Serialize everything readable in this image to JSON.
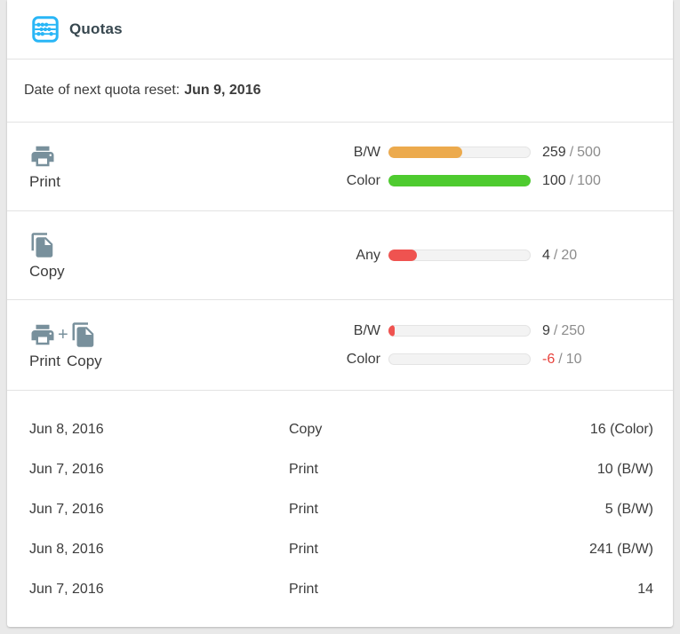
{
  "colors": {
    "accent_cyan": "#29b6f6",
    "icon_gray": "#78909c",
    "orange_bar": "#ecaa4d",
    "green_bar": "#4ecb2f",
    "red_bar": "#ef5350",
    "value_dark": "#3c3c3c",
    "value_negative": "#e8423c"
  },
  "header": {
    "title": "Quotas",
    "icon": "abacus-icon"
  },
  "reset": {
    "label": "Date of next quota reset:",
    "date": "Jun 9, 2016"
  },
  "quotas": [
    {
      "name": "Print",
      "device_labels": [
        "Print"
      ],
      "rows": [
        {
          "label": "B/W",
          "used": "259",
          "sep": "/",
          "limit": "500",
          "percent": 51.8,
          "color": "#ecaa4d",
          "used_color": "#3c3c3c"
        },
        {
          "label": "Color",
          "used": "100",
          "sep": "/",
          "limit": "100",
          "percent": 100,
          "color": "#4ecb2f",
          "used_color": "#3c3c3c"
        }
      ]
    },
    {
      "name": "Copy",
      "device_labels": [
        "Copy"
      ],
      "rows": [
        {
          "label": "Any",
          "used": "4",
          "sep": "/",
          "limit": "20",
          "percent": 20,
          "color": "#ef5350",
          "used_color": "#3c3c3c"
        }
      ]
    },
    {
      "name": "Print + Copy",
      "plus": "+",
      "device_labels": [
        "Print",
        "Copy"
      ],
      "rows": [
        {
          "label": "B/W",
          "used": "9",
          "sep": "/",
          "limit": "250",
          "percent": 3.6,
          "color": "#ef5350",
          "used_color": "#3c3c3c"
        },
        {
          "label": "Color",
          "used": "-6",
          "sep": "/",
          "limit": "10",
          "percent": 0,
          "color": "#ef5350",
          "used_color": "#e8423c"
        }
      ]
    }
  ],
  "history": {
    "rows": [
      {
        "date": "Jun 8, 2016",
        "type": "Copy",
        "amount": "16 (Color)"
      },
      {
        "date": "Jun 7, 2016",
        "type": "Print",
        "amount": "10 (B/W)"
      },
      {
        "date": "Jun 7, 2016",
        "type": "Print",
        "amount": "5 (B/W)"
      },
      {
        "date": "Jun 8, 2016",
        "type": "Print",
        "amount": "241 (B/W)"
      },
      {
        "date": "Jun 7, 2016",
        "type": "Print",
        "amount": "14"
      }
    ]
  }
}
